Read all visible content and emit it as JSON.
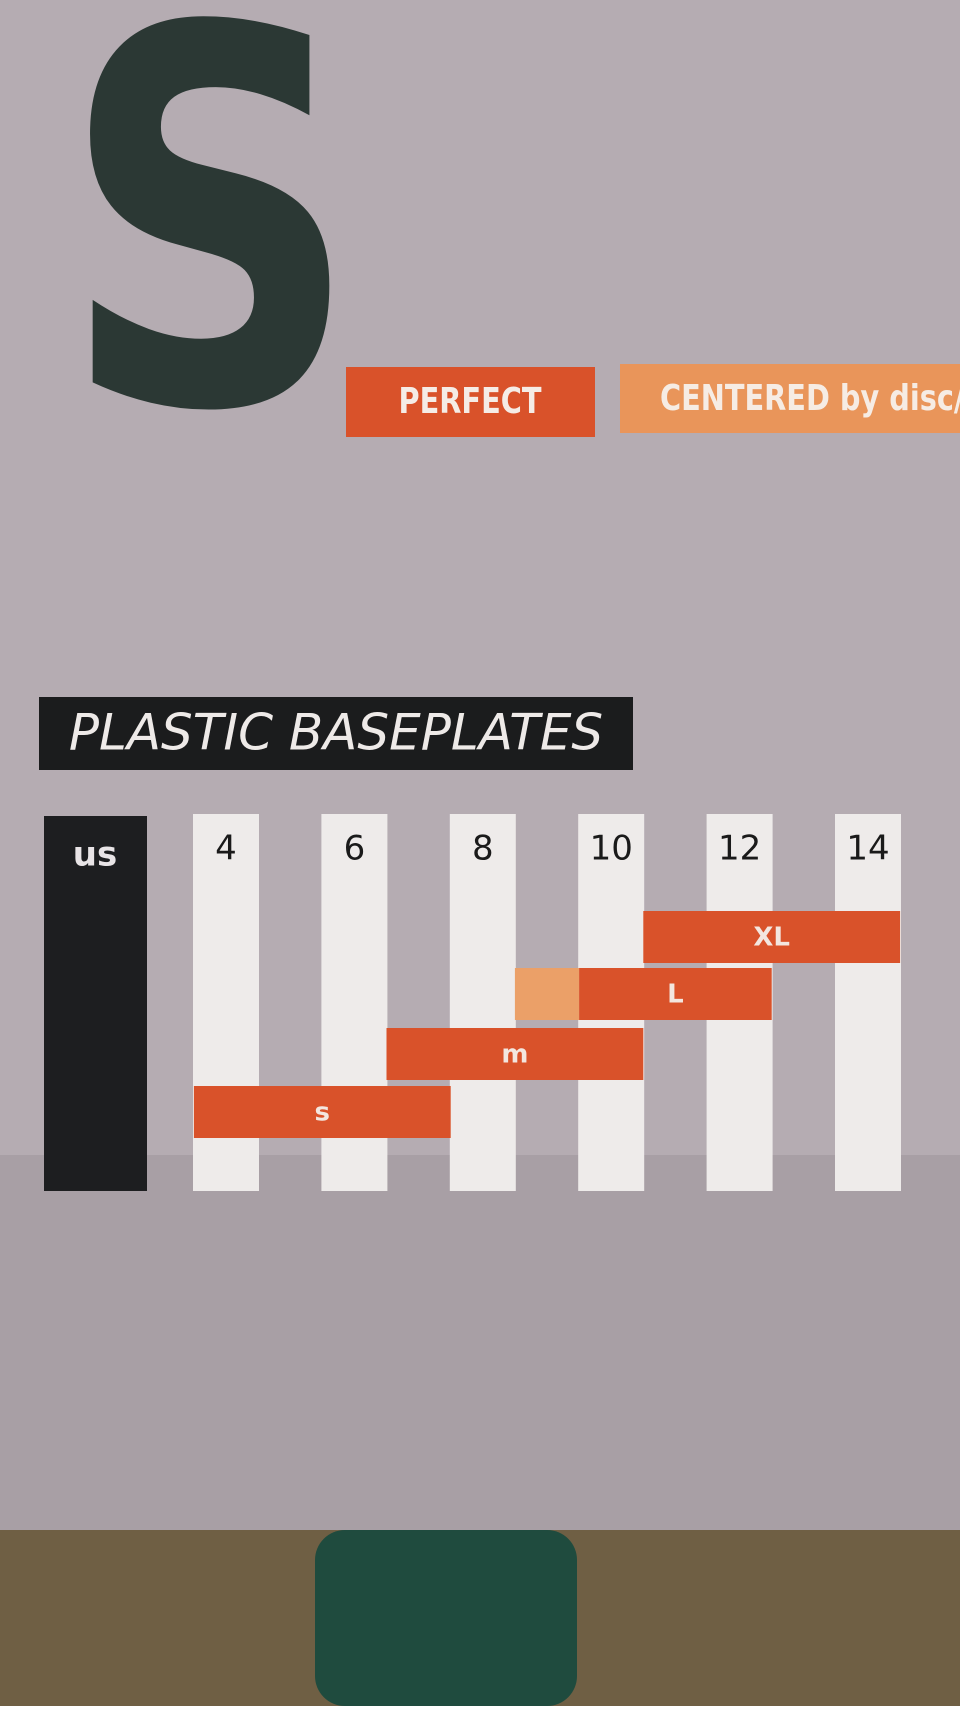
{
  "brand_letter": "S",
  "tags": [
    "PERFECT",
    "CENTERED by disc/"
  ],
  "chart_data": {
    "type": "range",
    "title": "PLASTIC BASEPLATES",
    "axis_label": "us",
    "xlim": [
      3,
      15
    ],
    "xticks": [
      4,
      6,
      8,
      10,
      12,
      14
    ],
    "series": [
      {
        "name": "s",
        "color": "#d9522a",
        "values": [
          3.5,
          7.5
        ]
      },
      {
        "name": "m",
        "color": "#d9522a",
        "values": [
          6.5,
          10.5
        ]
      },
      {
        "name": "L",
        "color": "#d9522a",
        "values": [
          9.5,
          12.5
        ],
        "extension": [
          8.5,
          9.5
        ],
        "extension_color": "#eba068"
      },
      {
        "name": "XL",
        "color": "#d9522a",
        "values": [
          10.5,
          14.5
        ]
      }
    ]
  }
}
